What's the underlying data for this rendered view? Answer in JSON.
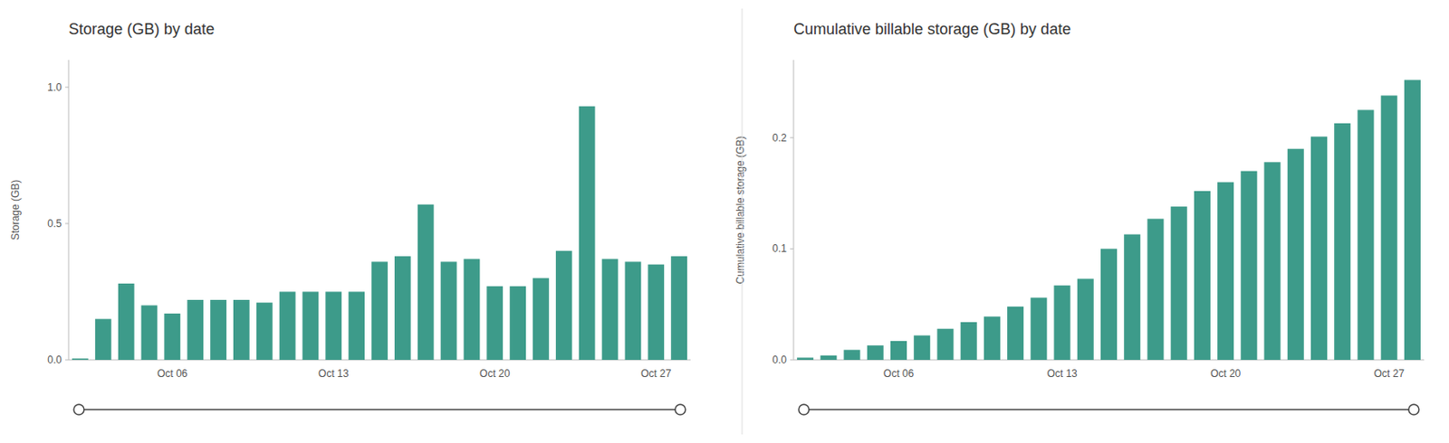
{
  "chart_data": [
    {
      "type": "bar",
      "title": "Storage (GB) by date",
      "ylabel": "Storage (GB)",
      "categories": [
        null,
        null,
        null,
        null,
        "Oct 06",
        null,
        null,
        null,
        null,
        null,
        null,
        "Oct 13",
        null,
        null,
        null,
        null,
        null,
        null,
        "Oct 20",
        null,
        null,
        null,
        null,
        null,
        null,
        "Oct 27",
        null
      ],
      "values": [
        0.005,
        0.15,
        0.28,
        0.2,
        0.17,
        0.22,
        0.22,
        0.22,
        0.21,
        0.25,
        0.25,
        0.25,
        0.25,
        0.36,
        0.38,
        0.57,
        0.36,
        0.37,
        0.27,
        0.27,
        0.3,
        0.4,
        0.93,
        0.37,
        0.36,
        0.35,
        0.38
      ],
      "color": "#3d9b8a",
      "ylim": [
        0,
        1.1
      ],
      "yticks": [
        {
          "value": 0,
          "label": "0.0"
        },
        0.5,
        {
          "value": 1,
          "label": "1.0"
        }
      ],
      "grid": false
    },
    {
      "type": "bar",
      "title": "Cumulative billable storage (GB) by date",
      "ylabel": "Cumulative billable storage (GB)",
      "categories": [
        null,
        null,
        null,
        null,
        "Oct 06",
        null,
        null,
        null,
        null,
        null,
        null,
        "Oct 13",
        null,
        null,
        null,
        null,
        null,
        null,
        "Oct 20",
        null,
        null,
        null,
        null,
        null,
        null,
        "Oct 27",
        null
      ],
      "values": [
        0.002,
        0.004,
        0.009,
        0.013,
        0.017,
        0.022,
        0.028,
        0.034,
        0.039,
        0.048,
        0.056,
        0.067,
        0.073,
        0.1,
        0.113,
        0.127,
        0.138,
        0.152,
        0.16,
        0.17,
        0.178,
        0.19,
        0.201,
        0.213,
        0.225,
        0.238,
        0.252
      ],
      "color": "#3d9b8a",
      "ylim": [
        0,
        0.27
      ],
      "yticks": [
        {
          "value": 0,
          "label": "0.0"
        },
        0.1,
        0.2
      ],
      "grid": false
    }
  ]
}
